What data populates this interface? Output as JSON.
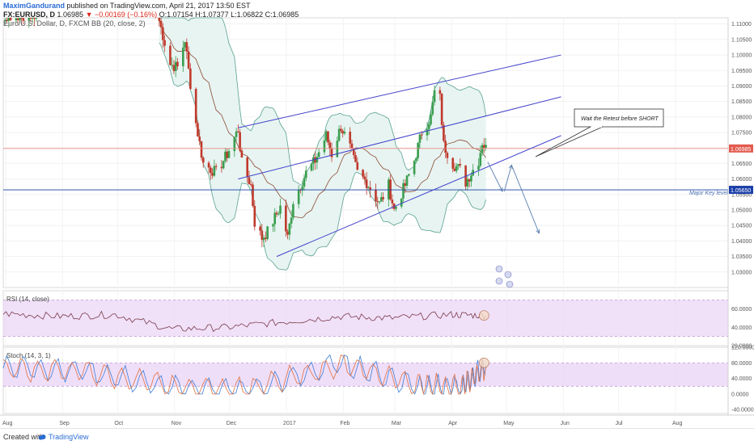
{
  "header": {
    "author": "MaximGandurand",
    "published": "published on TradingView.com, April 21, 2017 13:50 EST",
    "symbol": "FX:EURUSD, D",
    "price": "1.06985",
    "change": "▼ −0.00169 (−0.16%)",
    "ohlc": "O:1.07154 H:1.07377 L:1.06822 C:1.06985",
    "instrument_line": "Euro/U.S. Dollar, D, FXCM",
    "bb_label": "BB (20, close, 2)"
  },
  "rsi_label": "RSI (14, close)",
  "stoch_label": "Stoch (14, 3, 1)",
  "footer": {
    "created_with": "Created with",
    "brand": "TradingView"
  },
  "colors": {
    "bull": "#3a9e4f",
    "bear": "#c0392b",
    "bb_fill": "#e4f3f1",
    "bb_band": "#5aa28f",
    "bb_basis": "#8c4b32",
    "trend": "#4444cc",
    "arrow": "#5a7fb0",
    "rsi": "#7a3a4a",
    "stoch_k": "#3b7dd8",
    "stoch_d": "#e07040",
    "osc_fill": "#ead3f5",
    "price_tag": "#e35b4f",
    "level_tag": "#1a3fa8"
  },
  "chart_data": [
    {
      "type": "candlestick",
      "title": "Euro/U.S. Dollar, D, FXCM",
      "x_range": [
        "2016-08-01",
        "2017-08-31"
      ],
      "y_range": [
        1.025,
        1.112
      ],
      "y_ticks": [
        "1.11000",
        "1.10500",
        "1.10000",
        "1.09500",
        "1.09000",
        "1.08500",
        "1.08000",
        "1.07500",
        "1.07000",
        "1.06500",
        "1.06000",
        "1.05500",
        "1.05000",
        "1.04500",
        "1.04000",
        "1.03500",
        "1.03000"
      ],
      "x_ticks": [
        "Aug",
        "Sep",
        "Oct",
        "Nov",
        "Dec",
        "2017",
        "Feb",
        "Mar",
        "Apr",
        "May",
        "Jun",
        "Jul",
        "Aug"
      ],
      "price_path": [
        [
          "2016-10-25",
          1.111
        ],
        [
          "2016-10-31",
          1.097
        ],
        [
          "2016-11-04",
          1.096
        ],
        [
          "2016-11-08",
          1.105
        ],
        [
          "2016-11-10",
          1.095
        ],
        [
          "2016-11-14",
          1.078
        ],
        [
          "2016-11-18",
          1.065
        ],
        [
          "2016-11-25",
          1.062
        ],
        [
          "2016-12-01",
          1.068
        ],
        [
          "2016-12-07",
          1.076
        ],
        [
          "2016-12-09",
          1.065
        ],
        [
          "2016-12-14",
          1.058
        ],
        [
          "2016-12-16",
          1.046
        ],
        [
          "2016-12-20",
          1.041
        ],
        [
          "2016-12-23",
          1.043
        ],
        [
          "2016-12-30",
          1.051
        ],
        [
          "2017-01-03",
          1.041
        ],
        [
          "2017-01-06",
          1.053
        ],
        [
          "2017-01-10",
          1.058
        ],
        [
          "2017-01-13",
          1.062
        ],
        [
          "2017-01-18",
          1.066
        ],
        [
          "2017-01-24",
          1.074
        ],
        [
          "2017-01-27",
          1.068
        ],
        [
          "2017-02-01",
          1.077
        ],
        [
          "2017-02-06",
          1.07
        ],
        [
          "2017-02-10",
          1.062
        ],
        [
          "2017-02-15",
          1.059
        ],
        [
          "2017-02-22",
          1.052
        ],
        [
          "2017-02-27",
          1.058
        ],
        [
          "2017-03-02",
          1.05
        ],
        [
          "2017-03-08",
          1.058
        ],
        [
          "2017-03-13",
          1.066
        ],
        [
          "2017-03-17",
          1.075
        ],
        [
          "2017-03-22",
          1.08
        ],
        [
          "2017-03-24",
          1.088
        ],
        [
          "2017-03-27",
          1.086
        ],
        [
          "2017-03-29",
          1.071
        ],
        [
          "2017-04-03",
          1.065
        ],
        [
          "2017-04-07",
          1.063
        ],
        [
          "2017-04-10",
          1.059
        ],
        [
          "2017-04-13",
          1.062
        ],
        [
          "2017-04-17",
          1.066
        ],
        [
          "2017-04-19",
          1.072
        ],
        [
          "2017-04-21",
          1.06985
        ]
      ],
      "current_price_line": 1.06985,
      "key_level": 1.0565,
      "price_labels": [
        "1.06985",
        "1.05650"
      ],
      "annotations": [
        {
          "text": "Wait the Retest before SHORT",
          "kind": "callout"
        },
        {
          "text": "Major Key level",
          "kind": "label"
        }
      ],
      "trendlines": [
        {
          "from": [
            "2016-12-07",
            1.0765
          ],
          "to": [
            "2017-06-01",
            1.1
          ]
        },
        {
          "from": [
            "2016-12-07",
            1.06
          ],
          "to": [
            "2017-06-01",
            1.0865
          ]
        },
        {
          "from": [
            "2016-12-28",
            1.035
          ],
          "to": [
            "2017-06-01",
            1.074
          ]
        }
      ],
      "projection_arrows": [
        [
          [
            "2017-04-22",
            1.0655
          ],
          [
            "2017-04-30",
            1.056
          ]
        ],
        [
          [
            "2017-05-01",
            1.056
          ],
          [
            "2017-05-05",
            1.0645
          ]
        ],
        [
          [
            "2017-05-05",
            1.0645
          ],
          [
            "2017-05-20",
            1.0425
          ]
        ]
      ]
    },
    {
      "type": "line",
      "title": "RSI (14, close)",
      "y_range": [
        20,
        80
      ],
      "y_ticks": [
        "60.0000",
        "40.0000",
        "20.0000"
      ],
      "bands": [
        70,
        30
      ],
      "series": [
        {
          "name": "RSI",
          "x": [
            "2016-08-01",
            "2016-09-01",
            "2016-10-01",
            "2016-11-01",
            "2016-12-01",
            "2017-01-01",
            "2017-02-01",
            "2017-03-01",
            "2017-04-01",
            "2017-04-21"
          ],
          "values": [
            55,
            52,
            54,
            38,
            40,
            46,
            52,
            50,
            54,
            53
          ]
        }
      ]
    },
    {
      "type": "line",
      "title": "Stoch (14, 3, 1)",
      "y_range": [
        -50,
        120
      ],
      "y_ticks": [
        "120.0000",
        "80.0000",
        "40.0000",
        "0.0000",
        "-40.0000"
      ],
      "bands": [
        80,
        20
      ],
      "series": [
        {
          "name": "%K",
          "x": [
            "2016-08-01",
            "2016-09-15",
            "2016-11-01",
            "2016-12-15",
            "2017-02-01",
            "2017-03-15",
            "2017-04-08",
            "2017-04-21"
          ],
          "values": [
            70,
            60,
            15,
            10,
            80,
            20,
            15,
            75
          ]
        },
        {
          "name": "%D",
          "x": [
            "2016-08-01",
            "2016-09-15",
            "2016-11-01",
            "2016-12-15",
            "2017-02-01",
            "2017-03-15",
            "2017-04-08",
            "2017-04-21"
          ],
          "values": [
            65,
            58,
            18,
            14,
            75,
            25,
            18,
            70
          ]
        }
      ]
    }
  ]
}
